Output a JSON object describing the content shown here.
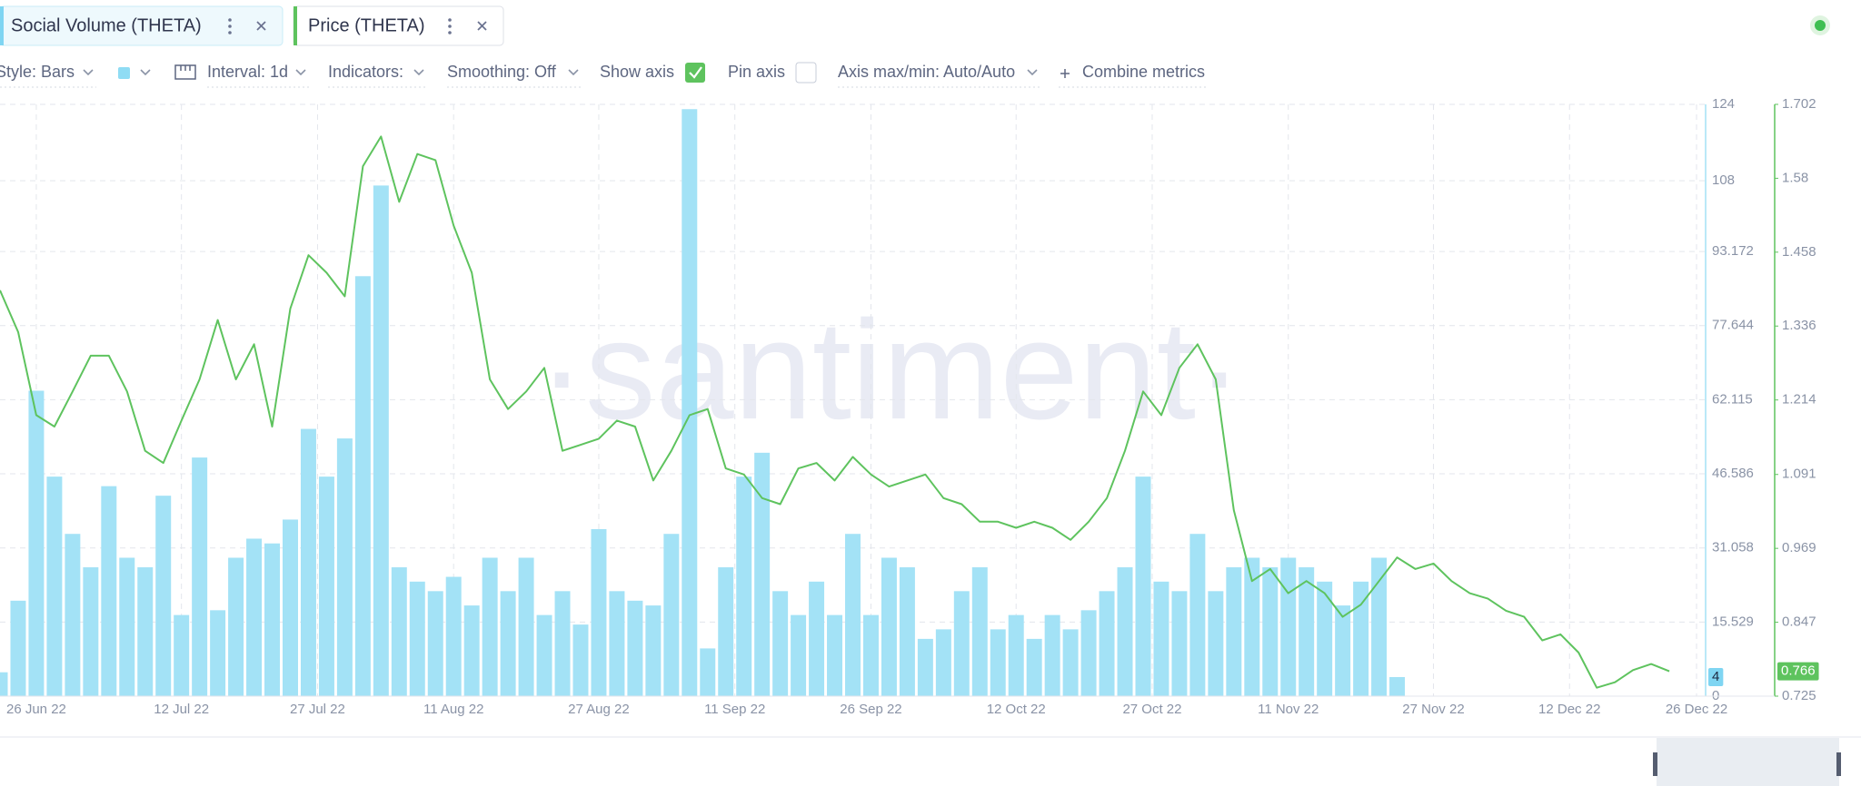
{
  "tabs": [
    {
      "label": "Social Volume (THETA)"
    },
    {
      "label": "Price (THETA)"
    }
  ],
  "toolbar": {
    "style": "Style: Bars",
    "interval": "Interval: 1d",
    "indicators": "Indicators:",
    "smoothing": "Smoothing: Off",
    "show_axis": "Show axis",
    "pin_axis": "Pin axis",
    "axis_range": "Axis max/min: Auto/Auto",
    "combine": "Combine metrics"
  },
  "watermark": "·santiment·",
  "chart_data": {
    "type": "combo",
    "x": [
      "2022-06-22",
      "2022-06-24",
      "2022-06-26",
      "2022-06-28",
      "2022-06-30",
      "2022-07-02",
      "2022-07-04",
      "2022-07-06",
      "2022-07-08",
      "2022-07-10",
      "2022-07-12",
      "2022-07-14",
      "2022-07-16",
      "2022-07-18",
      "2022-07-20",
      "2022-07-22",
      "2022-07-24",
      "2022-07-26",
      "2022-07-28",
      "2022-07-30",
      "2022-08-01",
      "2022-08-03",
      "2022-08-05",
      "2022-08-07",
      "2022-08-09",
      "2022-08-11",
      "2022-08-13",
      "2022-08-15",
      "2022-08-17",
      "2022-08-19",
      "2022-08-21",
      "2022-08-23",
      "2022-08-25",
      "2022-08-27",
      "2022-08-29",
      "2022-08-31",
      "2022-09-02",
      "2022-09-04",
      "2022-09-06",
      "2022-09-08",
      "2022-09-10",
      "2022-09-12",
      "2022-09-14",
      "2022-09-16",
      "2022-09-18",
      "2022-09-20",
      "2022-09-22",
      "2022-09-24",
      "2022-09-26",
      "2022-09-28",
      "2022-09-30",
      "2022-10-02",
      "2022-10-04",
      "2022-10-06",
      "2022-10-08",
      "2022-10-10",
      "2022-10-12",
      "2022-10-14",
      "2022-10-16",
      "2022-10-18",
      "2022-10-20",
      "2022-10-22",
      "2022-10-24",
      "2022-10-26",
      "2022-10-28",
      "2022-10-30",
      "2022-11-01",
      "2022-11-03",
      "2022-11-05",
      "2022-11-07",
      "2022-11-09",
      "2022-11-11",
      "2022-11-13",
      "2022-11-15",
      "2022-11-17",
      "2022-11-19",
      "2022-11-21",
      "2022-11-23",
      "2022-11-25",
      "2022-11-27",
      "2022-11-29",
      "2022-12-01",
      "2022-12-03",
      "2022-12-05",
      "2022-12-07",
      "2022-12-09",
      "2022-12-11",
      "2022-12-13",
      "2022-12-15",
      "2022-12-17",
      "2022-12-19",
      "2022-12-21",
      "2022-12-23"
    ],
    "series": [
      {
        "name": "Social Volume (THETA)",
        "type": "bar",
        "color": "#a3e2f6",
        "values": [
          5,
          20,
          64,
          46,
          34,
          27,
          44,
          29,
          27,
          42,
          17,
          50,
          18,
          29,
          33,
          32,
          37,
          56,
          46,
          54,
          88,
          107,
          27,
          24,
          22,
          25,
          19,
          29,
          22,
          29,
          17,
          22,
          15,
          35,
          22,
          20,
          19,
          34,
          123,
          10,
          27,
          46,
          51,
          22,
          17,
          24,
          17,
          34,
          17,
          29,
          27,
          12,
          14,
          22,
          27,
          14,
          17,
          12,
          17,
          14,
          18,
          22,
          27,
          46,
          24,
          22,
          34,
          22,
          27,
          29,
          27,
          29,
          27,
          24,
          19,
          24,
          29,
          4,
          null,
          null,
          null,
          null,
          null,
          null,
          null,
          null,
          null,
          null,
          null,
          null,
          null,
          null,
          null
        ]
      },
      {
        "name": "Price (THETA)",
        "type": "line",
        "axis": "y2",
        "color": "#5ec35e",
        "values": [
          1.395,
          1.326,
          1.189,
          1.17,
          1.228,
          1.287,
          1.287,
          1.228,
          1.13,
          1.11,
          1.18,
          1.248,
          1.346,
          1.248,
          1.306,
          1.17,
          1.365,
          1.453,
          1.424,
          1.385,
          1.6,
          1.649,
          1.541,
          1.62,
          1.61,
          1.502,
          1.424,
          1.248,
          1.199,
          1.228,
          1.267,
          1.13,
          1.14,
          1.15,
          1.18,
          1.17,
          1.081,
          1.13,
          1.189,
          1.199,
          1.101,
          1.091,
          1.052,
          1.042,
          1.101,
          1.11,
          1.081,
          1.12,
          1.091,
          1.071,
          1.081,
          1.091,
          1.052,
          1.042,
          1.013,
          1.013,
          1.003,
          1.013,
          1.003,
          0.983,
          1.013,
          1.052,
          1.13,
          1.228,
          1.189,
          1.267,
          1.306,
          1.248,
          1.032,
          0.915,
          0.935,
          0.895,
          0.915,
          0.895,
          0.856,
          0.876,
          0.915,
          0.954,
          0.935,
          0.944,
          0.915,
          0.895,
          0.886,
          0.866,
          0.856,
          0.817,
          0.827,
          0.797,
          0.739,
          0.748,
          0.768,
          0.778,
          0.766
        ]
      }
    ],
    "xlim": [
      "2022-06-22",
      "2022-12-27"
    ],
    "xticks": [
      {
        "value": "2022-06-26",
        "label": "26 Jun 22"
      },
      {
        "value": "2022-07-12",
        "label": "12 Jul 22"
      },
      {
        "value": "2022-07-27",
        "label": "27 Jul 22"
      },
      {
        "value": "2022-08-11",
        "label": "11 Aug 22"
      },
      {
        "value": "2022-08-27",
        "label": "27 Aug 22"
      },
      {
        "value": "2022-09-11",
        "label": "11 Sep 22"
      },
      {
        "value": "2022-09-26",
        "label": "26 Sep 22"
      },
      {
        "value": "2022-10-12",
        "label": "12 Oct 22"
      },
      {
        "value": "2022-10-27",
        "label": "27 Oct 22"
      },
      {
        "value": "2022-11-11",
        "label": "11 Nov 22"
      },
      {
        "value": "2022-11-27",
        "label": "27 Nov 22"
      },
      {
        "value": "2022-12-12",
        "label": "12 Dec 22"
      },
      {
        "value": "2022-12-26",
        "label": "26 Dec 22"
      }
    ],
    "ylim": [
      0,
      124
    ],
    "yticks": [
      0,
      15.529,
      31.058,
      46.586,
      62.115,
      77.644,
      93.172,
      108,
      124
    ],
    "y2lim": [
      0.725,
      1.702
    ],
    "y2ticks": [
      0.725,
      0.847,
      0.969,
      1.091,
      1.214,
      1.336,
      1.458,
      1.58,
      1.702
    ],
    "grid": true
  }
}
